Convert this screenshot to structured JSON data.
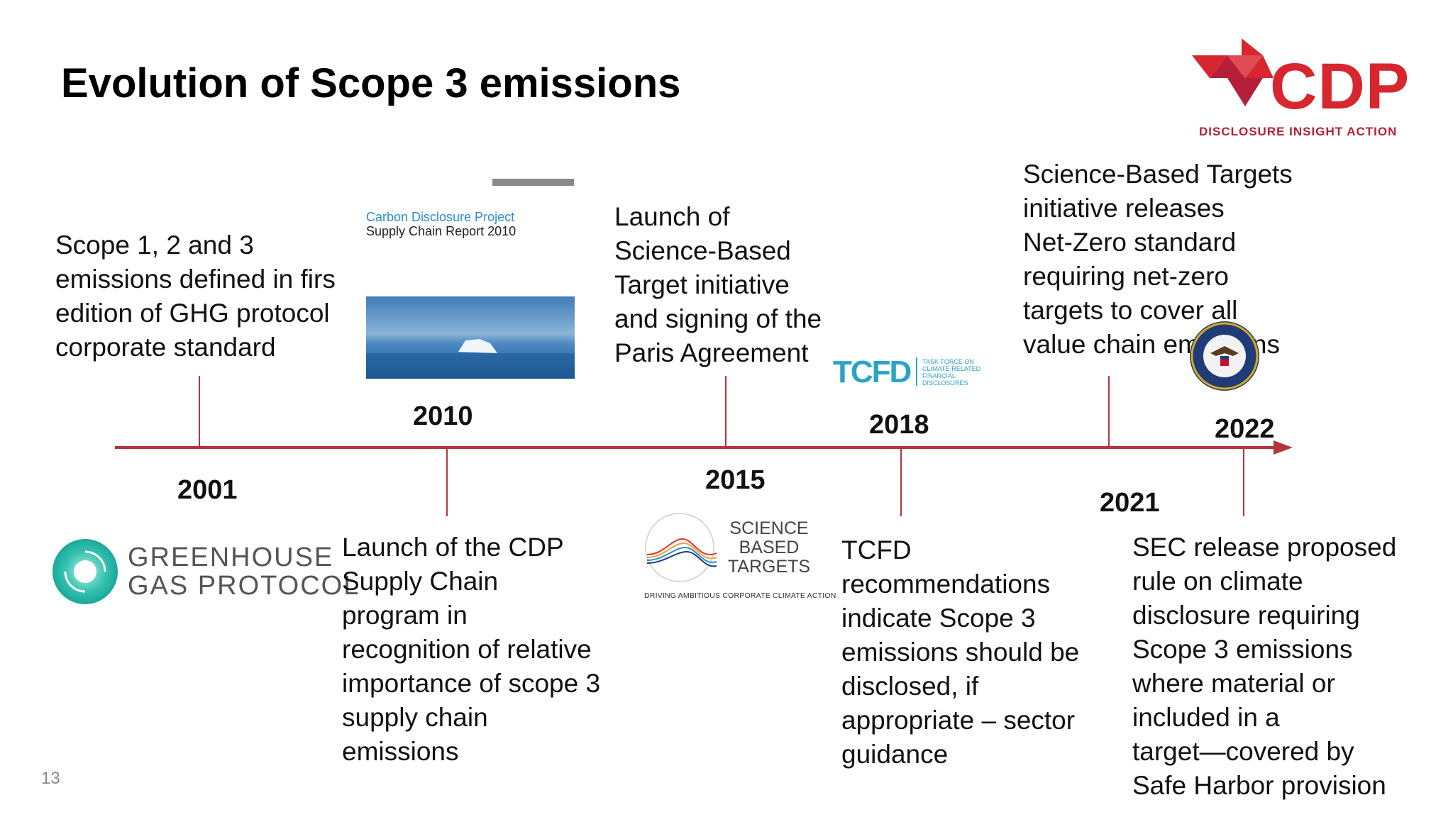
{
  "title": "Evolution of Scope 3 emissions",
  "page_number": "13",
  "colors": {
    "timeline": "#b4343e",
    "brand_red": "#d7262e",
    "teal": "#2aa3c7"
  },
  "logos": {
    "cdp": {
      "word": "CDP",
      "tagline": "DISCLOSURE INSIGHT ACTION"
    },
    "cdp_report": {
      "line1": "Carbon Disclosure Project",
      "line2": "Supply Chain Report 2010"
    },
    "tcfd": {
      "word": "TCFD",
      "small": "TASK FORCE ON\nCLIMATE-RELATED\nFINANCIAL\nDISCLOSURES"
    },
    "ghg": {
      "line1": "GREENHOUSE",
      "line2": "GAS PROTOCOL"
    },
    "sbt": {
      "line1": "SCIENCE",
      "line2": "BASED",
      "line3": "TARGETS",
      "strap": "DRIVING AMBITIOUS CORPORATE CLIMATE ACTION"
    }
  },
  "milestones": [
    {
      "year": "2001",
      "text": "Scope 1, 2 and 3\nemissions defined in firs\nedition of GHG protocol\ncorporate standard"
    },
    {
      "year": "2010",
      "text": "Launch of the CDP\nSupply Chain\nprogram in\nrecognition of relative\nimportance of scope 3\nsupply chain\nemissions"
    },
    {
      "year": "2015",
      "text": "Launch of\nScience-Based\nTarget initiative\nand signing of the\nParis Agreement"
    },
    {
      "year": "2018",
      "text": "TCFD\nrecommendations\nindicate Scope 3\nemissions should be\ndisclosed, if\nappropriate – sector\nguidance"
    },
    {
      "year": "2021",
      "text": "Science-Based Targets\ninitiative releases\nNet-Zero standard\nrequiring net-zero\ntargets to cover all\nvalue chain emissions"
    },
    {
      "year": "2022",
      "text": "SEC release proposed\nrule on climate\ndisclosure requiring\nScope 3 emissions\nwhere material or\nincluded in a\ntarget—covered by\nSafe Harbor provision"
    }
  ]
}
